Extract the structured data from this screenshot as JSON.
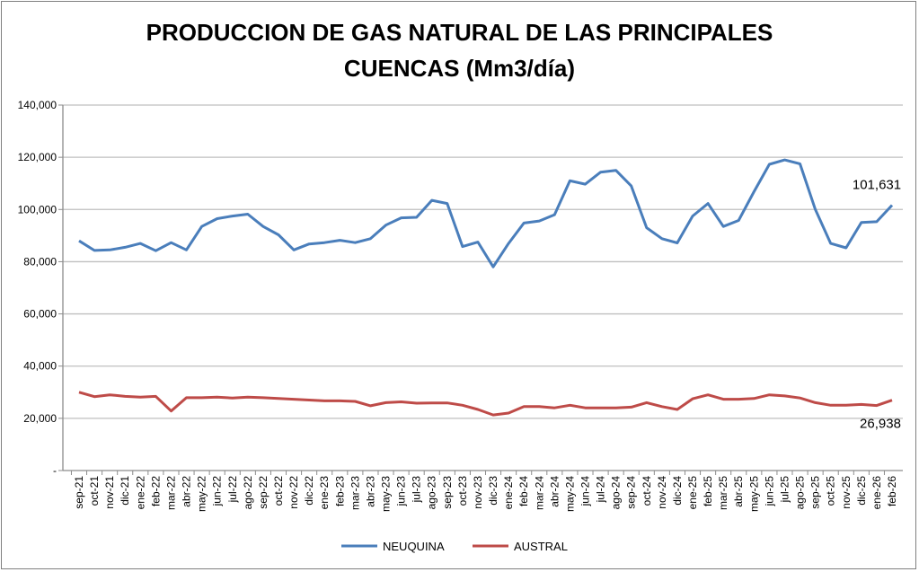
{
  "chart_data": {
    "type": "line",
    "title_line1": "PRODUCCION DE GAS NATURAL DE LAS PRINCIPALES",
    "title_line2": "CUENCAS (Mm3/día)",
    "xlabel": "",
    "ylabel": "",
    "ylim": [
      0,
      140000
    ],
    "yticks": [
      0,
      20000,
      40000,
      60000,
      80000,
      100000,
      120000,
      140000
    ],
    "ytick_labels": [
      "-",
      "20,000",
      "40,000",
      "60,000",
      "80,000",
      "100,000",
      "120,000",
      "140,000"
    ],
    "grid": true,
    "legend_position": "bottom",
    "categories": [
      "sep-21",
      "oct-21",
      "nov-21",
      "dic-21",
      "ene-22",
      "feb-22",
      "mar-22",
      "abr-22",
      "may-22",
      "jun-22",
      "jul-22",
      "ago-22",
      "sep-22",
      "oct-22",
      "nov-22",
      "dic-22",
      "ene-23",
      "feb-23",
      "mar-23",
      "abr-23",
      "may-23",
      "jun-23",
      "jul-23",
      "ago-23",
      "sep-23",
      "oct-23",
      "nov-23",
      "dic-23",
      "ene-24",
      "feb-24",
      "mar-24",
      "abr-24",
      "may-24",
      "jun-24",
      "jul-24",
      "ago-24",
      "sep-24",
      "oct-24",
      "nov-24",
      "dic-24",
      "ene-25",
      "feb-25",
      "mar-25",
      "abr-25",
      "may-25",
      "jun-25",
      "jul-25",
      "ago-25",
      "sep-25",
      "oct-25",
      "nov-25",
      "dic-25",
      "ene-26",
      "feb-26"
    ],
    "series": [
      {
        "name": "NEUQUINA",
        "color": "#4a7ebb",
        "values": [
          88000,
          84300,
          84500,
          85500,
          87000,
          84200,
          87300,
          84500,
          93500,
          96500,
          97500,
          98200,
          93500,
          90300,
          84500,
          86800,
          87300,
          88200,
          87300,
          88800,
          94000,
          96800,
          97000,
          103500,
          102300,
          85800,
          87500,
          78000,
          87000,
          94800,
          95600,
          98000,
          111000,
          109700,
          114300,
          115000,
          109000,
          93000,
          88800,
          87200,
          97500,
          102300,
          93500,
          95800,
          106800,
          117300,
          119000,
          117500,
          100000,
          87000,
          85300,
          95000,
          95300,
          101631
        ],
        "last_label": "101,631"
      },
      {
        "name": "AUSTRAL",
        "color": "#be4b48",
        "values": [
          30000,
          28300,
          29000,
          28400,
          28100,
          28400,
          22800,
          27900,
          27900,
          28100,
          27800,
          28100,
          27900,
          27600,
          27300,
          27000,
          26700,
          26700,
          26500,
          24800,
          26000,
          26300,
          25800,
          25900,
          25900,
          25000,
          23400,
          21300,
          22000,
          24500,
          24500,
          24000,
          25000,
          24000,
          24000,
          24000,
          24300,
          26000,
          24500,
          23400,
          27500,
          29000,
          27300,
          27300,
          27600,
          29000,
          28600,
          27800,
          26000,
          25000,
          25000,
          25300,
          24900,
          26938
        ],
        "last_label": "26,938"
      }
    ]
  }
}
